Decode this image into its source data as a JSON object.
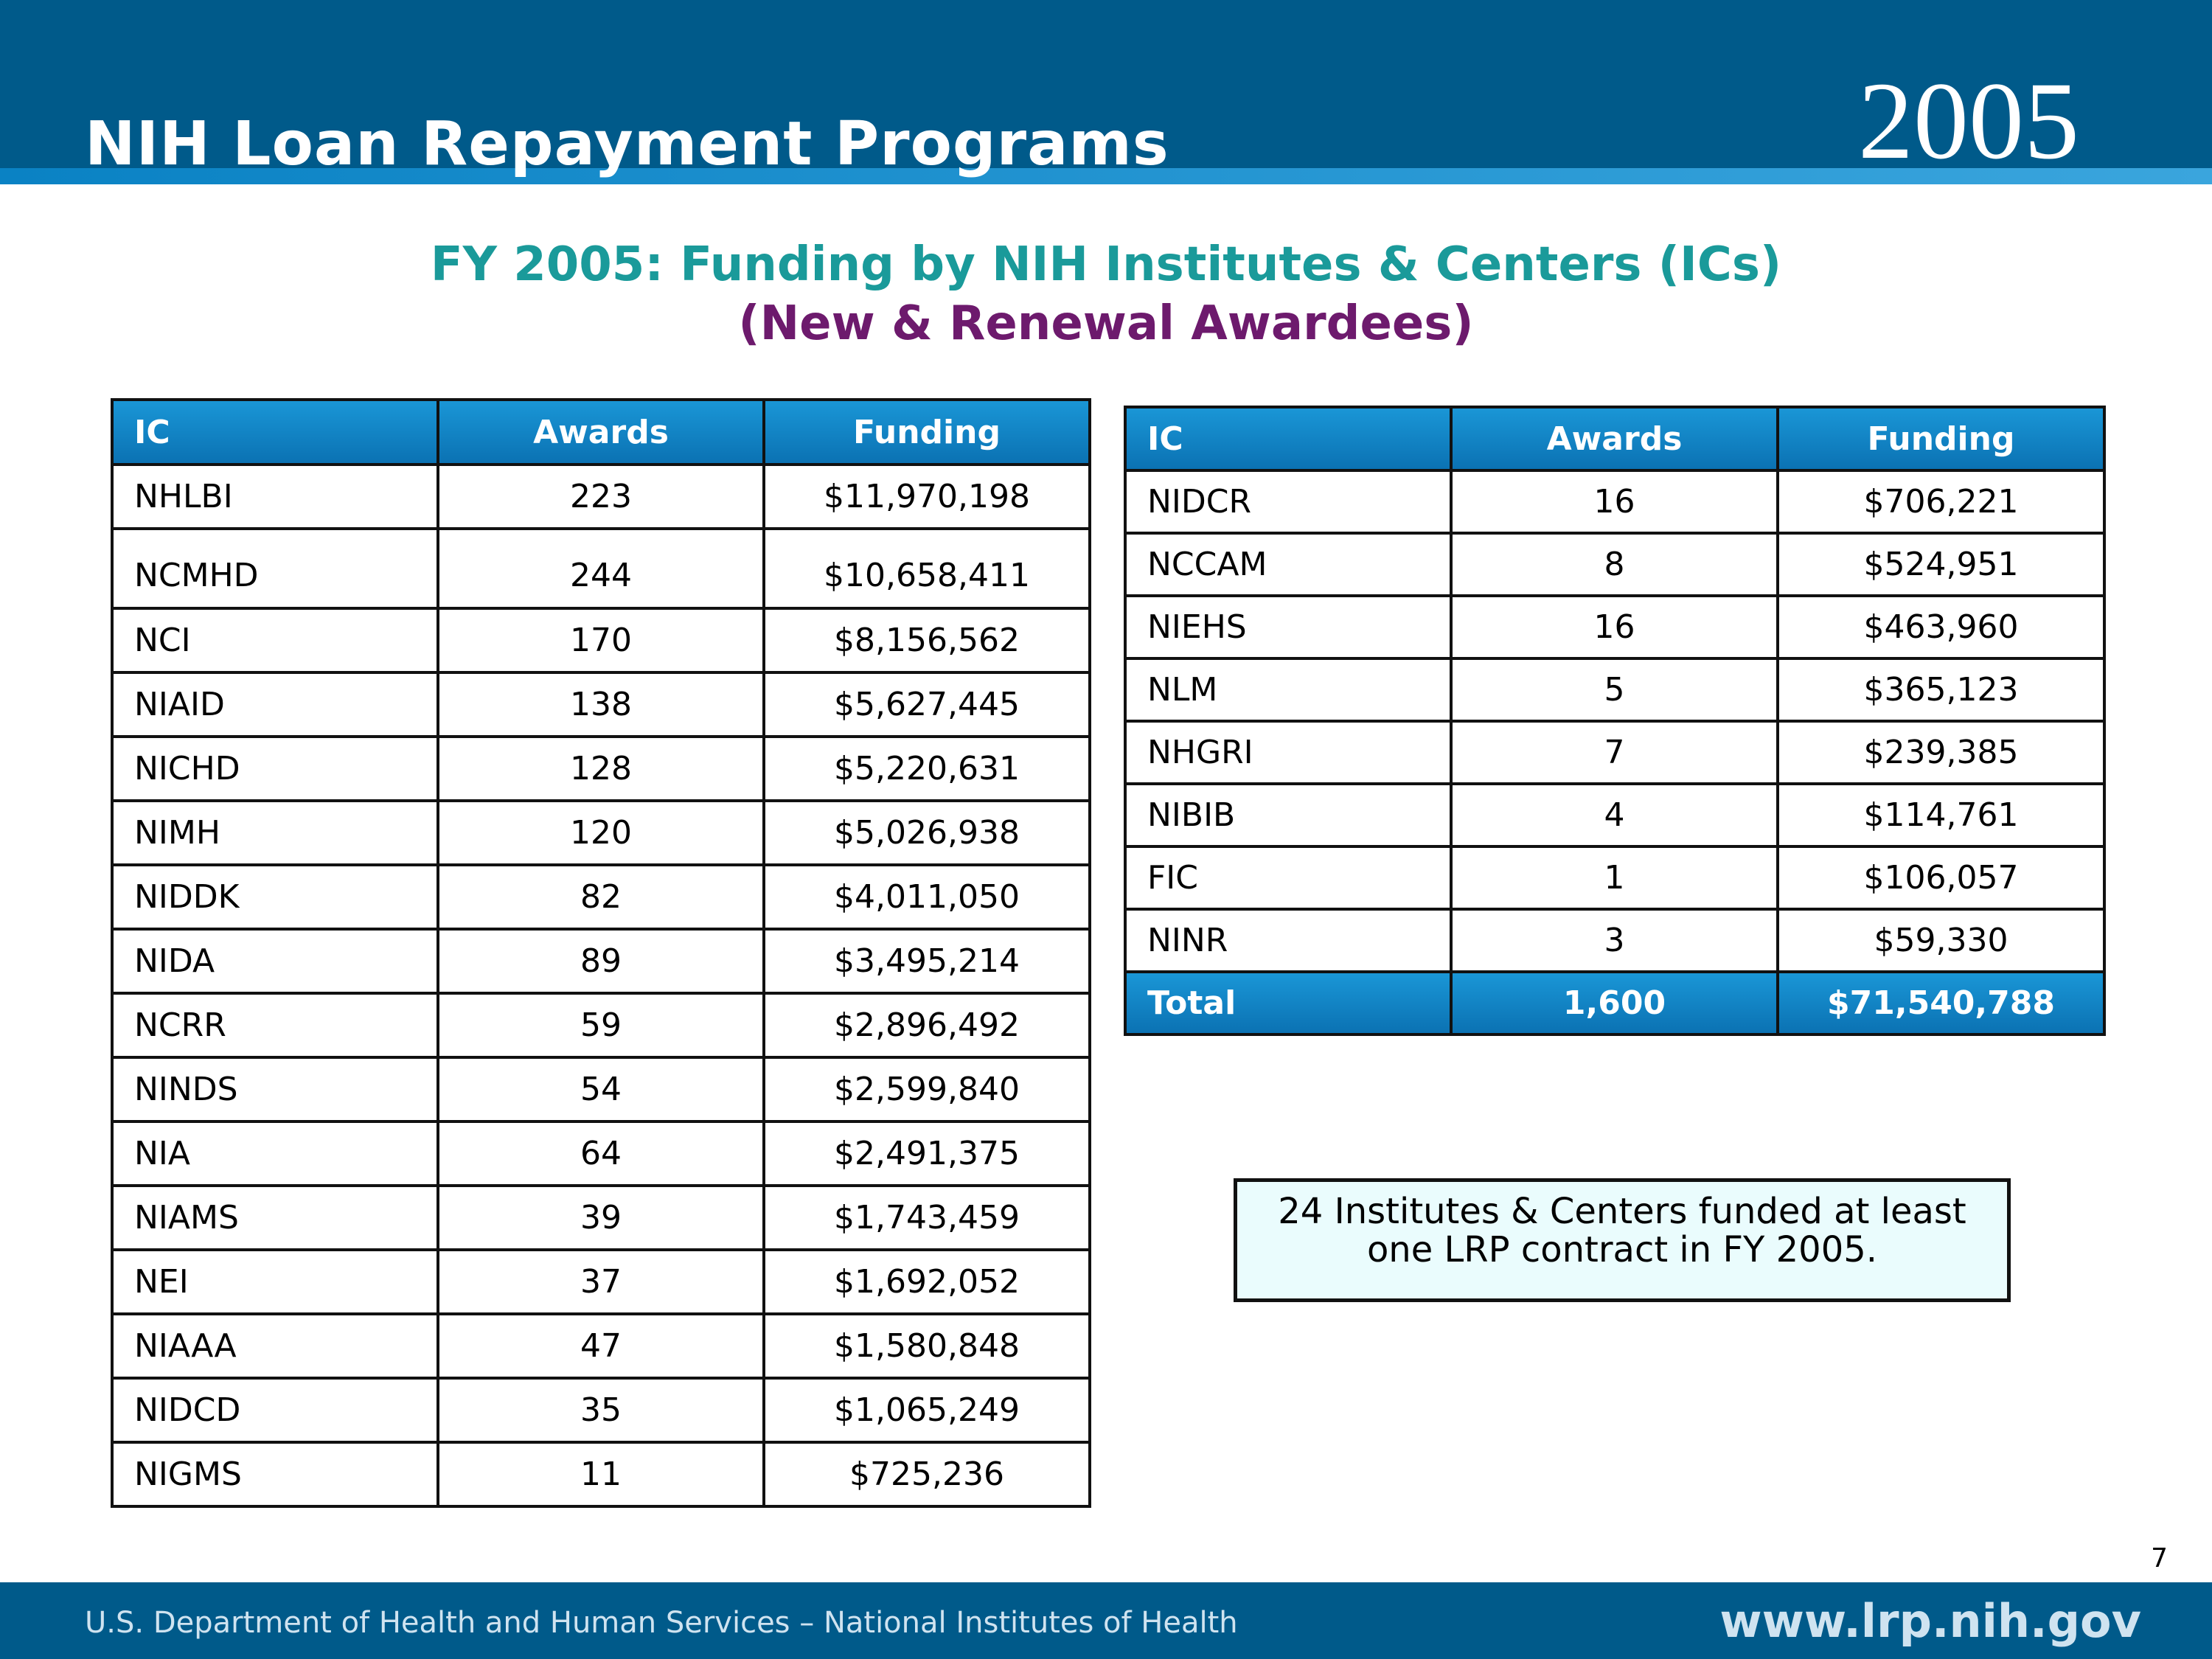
{
  "header": {
    "title": "NIH Loan Repayment Programs",
    "year": "2005"
  },
  "titles": {
    "line1": "FY 2005:  Funding by NIH Institutes & Centers (ICs)",
    "line2": "(New & Renewal Awardees)"
  },
  "left_table": {
    "headers": [
      "IC",
      "Awards",
      "Funding"
    ],
    "rows": [
      [
        "NHLBI",
        "223",
        "$11,970,198"
      ],
      [
        "NCMHD",
        "244",
        "$10,658,411"
      ],
      [
        "NCI",
        "170",
        "$8,156,562"
      ],
      [
        "NIAID",
        "138",
        "$5,627,445"
      ],
      [
        "NICHD",
        "128",
        "$5,220,631"
      ],
      [
        "NIMH",
        "120",
        "$5,026,938"
      ],
      [
        "NIDDK",
        "82",
        "$4,011,050"
      ],
      [
        "NIDA",
        "89",
        "$3,495,214"
      ],
      [
        "NCRR",
        "59",
        "$2,896,492"
      ],
      [
        "NINDS",
        "54",
        "$2,599,840"
      ],
      [
        "NIA",
        "64",
        "$2,491,375"
      ],
      [
        "NIAMS",
        "39",
        "$1,743,459"
      ],
      [
        "NEI",
        "37",
        "$1,692,052"
      ],
      [
        "NIAAA",
        "47",
        "$1,580,848"
      ],
      [
        "NIDCD",
        "35",
        "$1,065,249"
      ],
      [
        "NIGMS",
        "11",
        "$725,236"
      ]
    ]
  },
  "right_table": {
    "headers": [
      "IC",
      "Awards",
      "Funding"
    ],
    "rows": [
      [
        "NIDCR",
        "16",
        "$706,221"
      ],
      [
        "NCCAM",
        "8",
        "$524,951"
      ],
      [
        "NIEHS",
        "16",
        "$463,960"
      ],
      [
        "NLM",
        "5",
        "$365,123"
      ],
      [
        "NHGRI",
        "7",
        "$239,385"
      ],
      [
        "NIBIB",
        "4",
        "$114,761"
      ],
      [
        "FIC",
        "1",
        "$106,057"
      ],
      [
        "NINR",
        "3",
        "$59,330"
      ]
    ],
    "total": [
      "Total",
      "1,600",
      "$71,540,788"
    ]
  },
  "note": {
    "line1": "24 Institutes & Centers funded at least",
    "line2": "one LRP contract in FY 2005."
  },
  "page_number": "7",
  "footer": {
    "left": "U.S. Department of Health and Human Services – National Institutes of Health",
    "right": "www.lrp.nih.gov"
  }
}
